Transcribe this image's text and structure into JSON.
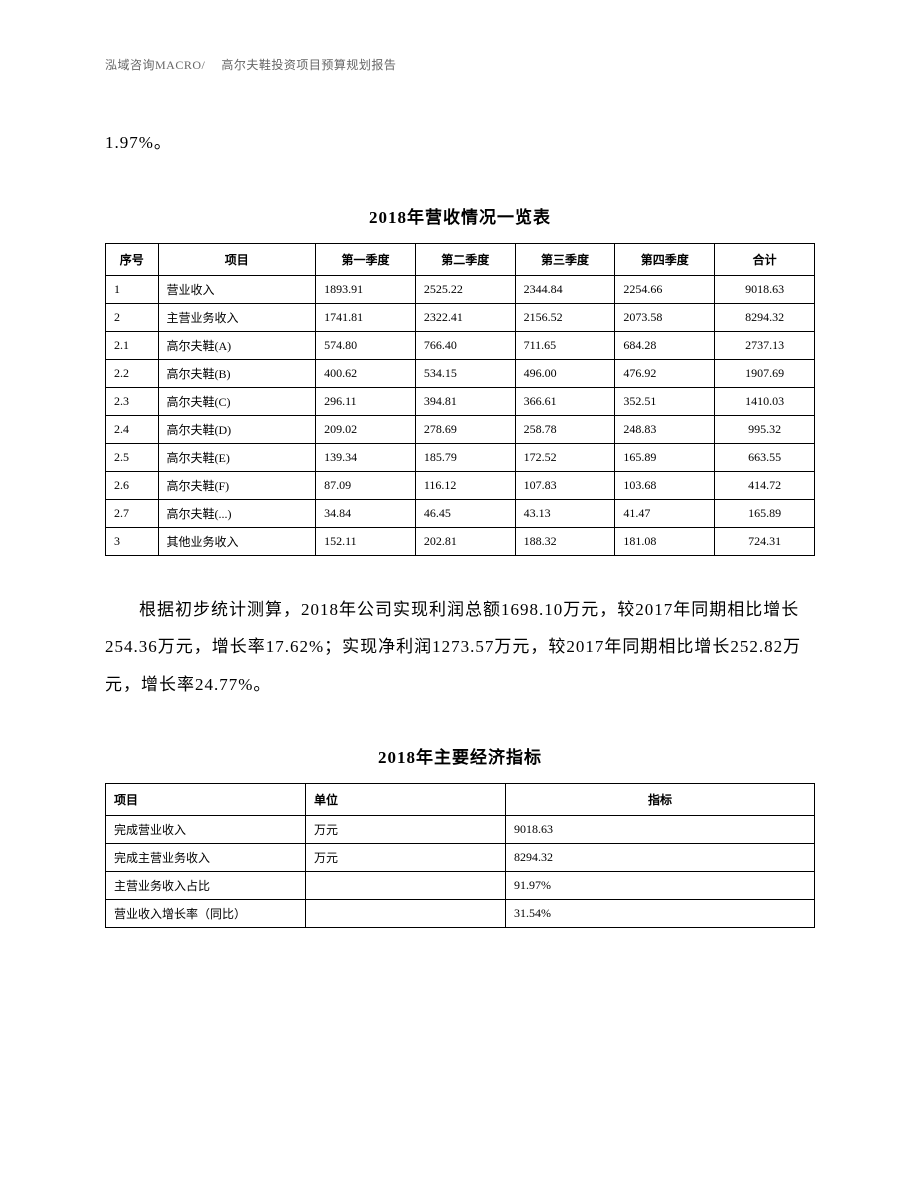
{
  "header": "泓域咨询MACRO/　 高尔夫鞋投资项目预算规划报告",
  "pre_text": "1.97%。",
  "table1": {
    "title": "2018年营收情况一览表",
    "columns": [
      "序号",
      "项目",
      "第一季度",
      "第二季度",
      "第三季度",
      "第四季度",
      "合计"
    ],
    "rows": [
      [
        "1",
        "营业收入",
        "1893.91",
        "2525.22",
        "2344.84",
        "2254.66",
        "9018.63"
      ],
      [
        "2",
        "主营业务收入",
        "1741.81",
        "2322.41",
        "2156.52",
        "2073.58",
        "8294.32"
      ],
      [
        "2.1",
        "高尔夫鞋(A)",
        "574.80",
        "766.40",
        "711.65",
        "684.28",
        "2737.13"
      ],
      [
        "2.2",
        "高尔夫鞋(B)",
        "400.62",
        "534.15",
        "496.00",
        "476.92",
        "1907.69"
      ],
      [
        "2.3",
        "高尔夫鞋(C)",
        "296.11",
        "394.81",
        "366.61",
        "352.51",
        "1410.03"
      ],
      [
        "2.4",
        "高尔夫鞋(D)",
        "209.02",
        "278.69",
        "258.78",
        "248.83",
        "995.32"
      ],
      [
        "2.5",
        "高尔夫鞋(E)",
        "139.34",
        "185.79",
        "172.52",
        "165.89",
        "663.55"
      ],
      [
        "2.6",
        "高尔夫鞋(F)",
        "87.09",
        "116.12",
        "107.83",
        "103.68",
        "414.72"
      ],
      [
        "2.7",
        "高尔夫鞋(...)",
        "34.84",
        "46.45",
        "43.13",
        "41.47",
        "165.89"
      ],
      [
        "3",
        "其他业务收入",
        "152.11",
        "202.81",
        "188.32",
        "181.08",
        "724.31"
      ]
    ]
  },
  "paragraph": "根据初步统计测算，2018年公司实现利润总额1698.10万元，较2017年同期相比增长254.36万元，增长率17.62%；实现净利润1273.57万元，较2017年同期相比增长252.82万元，增长率24.77%。",
  "table2": {
    "title": "2018年主要经济指标",
    "columns": [
      "项目",
      "单位",
      "指标"
    ],
    "rows": [
      [
        "完成营业收入",
        "万元",
        "9018.63"
      ],
      [
        "完成主营业务收入",
        "万元",
        "8294.32"
      ],
      [
        "主营业务收入占比",
        "",
        "91.97%"
      ],
      [
        "营业收入增长率（同比）",
        "",
        "31.54%"
      ]
    ]
  }
}
